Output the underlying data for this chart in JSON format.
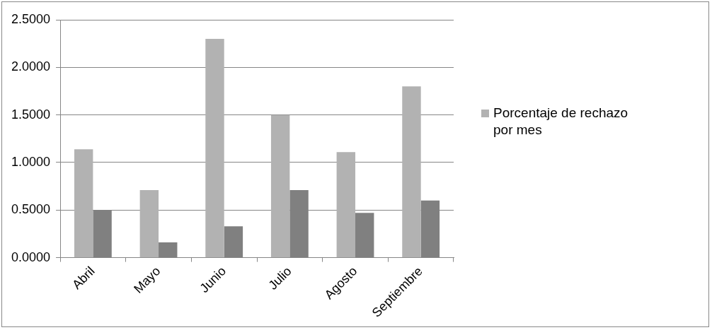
{
  "chart_data": {
    "type": "bar",
    "categories": [
      "Abril",
      "Mayo",
      "Junio",
      "Julio",
      "Agosto",
      "Septiembre"
    ],
    "series": [
      {
        "name": "Porcentaje de rechazo por mes",
        "color": "#b2b2b2",
        "values": [
          1.14,
          0.71,
          2.3,
          1.5,
          1.11,
          1.8
        ]
      },
      {
        "color": "#808080",
        "values": [
          0.5,
          0.16,
          0.33,
          0.71,
          0.47,
          0.6
        ]
      }
    ],
    "ylim": [
      0,
      2.5
    ],
    "yticks": [
      {
        "value": 0,
        "label": "0.0000"
      },
      {
        "value": 0.5,
        "label": "0.5000"
      },
      {
        "value": 1,
        "label": "1.0000"
      },
      {
        "value": 1.5,
        "label": "1.5000"
      },
      {
        "value": 2,
        "label": "2.0000"
      },
      {
        "value": 2.5,
        "label": "2.5000"
      }
    ],
    "grid": "y",
    "legend": "right"
  }
}
